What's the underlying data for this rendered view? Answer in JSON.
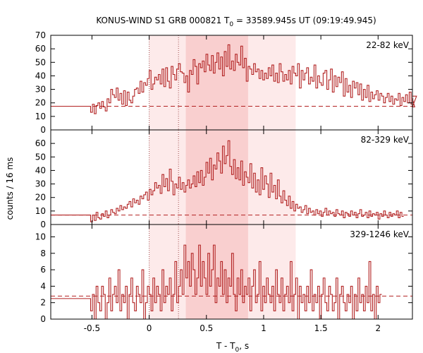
{
  "figure": {
    "title_main": "KONUS-WIND S1 GRB 000821 T",
    "title_sub": "0",
    "title_rest": " = 33589.945s UT (09:19:49.945)",
    "xlabel_main": "T - T",
    "xlabel_sub": "0",
    "xlabel_rest": ", s",
    "ylabel": "counts / 16 ms"
  },
  "colors": {
    "series": "#b22222",
    "background_dashed": "#b22222",
    "shade_light": "#fdeaea",
    "shade_dark": "#f9cfcf",
    "marker_lines": "#a05050"
  },
  "chart_data": {
    "type": "line",
    "style": "histogram-step",
    "bin_width_s": 0.016,
    "x_range": [
      -0.86,
      2.3
    ],
    "x_ticks": [
      -0.5,
      0,
      0.5,
      1,
      1.5,
      2
    ],
    "x_tick_labels": [
      "-0.5",
      "0",
      "0.5",
      "1",
      "1.5",
      "2"
    ],
    "vertical_markers_s": [
      0,
      0.256
    ],
    "shaded_intervals_s": [
      {
        "from": 0,
        "to": 1.28,
        "shade": "light"
      },
      {
        "from": 0.32,
        "to": 0.864,
        "shade": "dark"
      }
    ],
    "grid": false,
    "panels": [
      {
        "name": "22-82 keV",
        "ylim": [
          0,
          70
        ],
        "yticks": [
          0,
          10,
          20,
          30,
          40,
          50,
          60,
          70
        ],
        "background": 17.5,
        "pre_trigger_level": 17.5,
        "data_start_s": -0.512,
        "values": [
          13,
          19,
          12,
          18,
          20,
          16,
          21,
          17,
          14,
          23,
          20,
          30,
          26,
          24,
          31,
          22,
          27,
          19,
          29,
          18,
          28,
          22,
          20,
          25,
          30,
          31,
          27,
          36,
          28,
          35,
          33,
          38,
          44,
          30,
          34,
          39,
          37,
          41,
          34,
          45,
          32,
          46,
          36,
          31,
          47,
          41,
          37,
          45,
          49,
          43,
          42,
          35,
          40,
          28,
          44,
          41,
          52,
          47,
          34,
          49,
          46,
          51,
          43,
          56,
          48,
          44,
          55,
          42,
          50,
          57,
          45,
          54,
          40,
          58,
          47,
          63,
          45,
          51,
          44,
          56,
          50,
          48,
          62,
          46,
          53,
          36,
          47,
          45,
          41,
          49,
          43,
          45,
          38,
          44,
          37,
          42,
          38,
          46,
          40,
          48,
          36,
          42,
          35,
          49,
          43,
          36,
          41,
          37,
          44,
          34,
          47,
          42,
          40,
          49,
          31,
          44,
          37,
          42,
          46,
          34,
          39,
          36,
          48,
          31,
          40,
          35,
          33,
          42,
          44,
          30,
          37,
          45,
          28,
          40,
          32,
          39,
          35,
          43,
          25,
          38,
          28,
          33,
          24,
          36,
          31,
          35,
          26,
          34,
          22,
          30,
          24,
          33,
          21,
          28,
          23,
          26,
          29,
          22,
          27,
          25,
          20,
          24,
          27,
          21,
          25,
          19,
          23,
          22,
          27,
          18,
          24,
          21,
          26,
          20,
          28,
          19,
          23,
          17,
          25
        ]
      },
      {
        "name": "82-329 keV",
        "ylim": [
          0,
          70
        ],
        "yticks": [
          0,
          10,
          20,
          30,
          40,
          50,
          60
        ],
        "background": 7,
        "pre_trigger_level": 7,
        "data_start_s": -0.512,
        "values": [
          2,
          7,
          3,
          9,
          5,
          4,
          8,
          6,
          10,
          5,
          7,
          11,
          9,
          8,
          12,
          10,
          14,
          11,
          13,
          12,
          15,
          17,
          13,
          19,
          16,
          18,
          15,
          21,
          19,
          22,
          24,
          18,
          26,
          22,
          25,
          31,
          27,
          29,
          23,
          37,
          28,
          34,
          25,
          41,
          32,
          22,
          30,
          27,
          35,
          26,
          31,
          24,
          29,
          33,
          27,
          30,
          36,
          28,
          39,
          31,
          40,
          29,
          35,
          46,
          38,
          49,
          33,
          44,
          41,
          53,
          47,
          38,
          58,
          45,
          51,
          62,
          43,
          37,
          48,
          34,
          42,
          33,
          47,
          29,
          39,
          35,
          31,
          45,
          27,
          38,
          24,
          33,
          22,
          42,
          26,
          36,
          30,
          20,
          38,
          24,
          29,
          19,
          33,
          21,
          16,
          25,
          18,
          14,
          21,
          12,
          17,
          10,
          15,
          12,
          13,
          9,
          11,
          14,
          8,
          12,
          9,
          10,
          7,
          11,
          8,
          10,
          6,
          9,
          12,
          7,
          10,
          8,
          9,
          6,
          11,
          8,
          7,
          10,
          5,
          9,
          8,
          6,
          10,
          7,
          9,
          5,
          8,
          11,
          6,
          7,
          9,
          5,
          10,
          6,
          8,
          7,
          9,
          4,
          8,
          6,
          10,
          7,
          5,
          9,
          6,
          8,
          7,
          10,
          5,
          9,
          6
        ]
      },
      {
        "name": "329-1246 keV",
        "ylim": [
          0,
          11.5
        ],
        "yticks": [
          0,
          2,
          4,
          6,
          8,
          10
        ],
        "background": 2.8,
        "pre_trigger_level": 2.5,
        "data_start_s": -0.512,
        "values": [
          1,
          3,
          0,
          4,
          2,
          1,
          4,
          3,
          0,
          2,
          5,
          1,
          3,
          4,
          2,
          6,
          1,
          3,
          2,
          4,
          0,
          3,
          5,
          2,
          1,
          4,
          3,
          2,
          6,
          0,
          2,
          4,
          3,
          1,
          5,
          2,
          4,
          3,
          1,
          6,
          2,
          4,
          3,
          5,
          1,
          3,
          7,
          2,
          4,
          6,
          3,
          9,
          5,
          7,
          4,
          8,
          6,
          3,
          5,
          9,
          4,
          7,
          5,
          3,
          8,
          4,
          6,
          9,
          2,
          5,
          4,
          7,
          3,
          6,
          2,
          5,
          4,
          8,
          3,
          1,
          5,
          3,
          6,
          2,
          4,
          3,
          5,
          1,
          4,
          6,
          2,
          3,
          7,
          1,
          4,
          2,
          5,
          3,
          2,
          4,
          1,
          6,
          3,
          2,
          5,
          1,
          3,
          4,
          2,
          7,
          1,
          3,
          5,
          0,
          4,
          2,
          3,
          1,
          4,
          2,
          6,
          1,
          3,
          2,
          4,
          0,
          3,
          5,
          2,
          1,
          4,
          3,
          1,
          2,
          5,
          0,
          3,
          4,
          2,
          1,
          3,
          2,
          4,
          0,
          3,
          1,
          5,
          2,
          3,
          1,
          4,
          2,
          7,
          1,
          3,
          0,
          4,
          2,
          3
        ]
      }
    ]
  }
}
